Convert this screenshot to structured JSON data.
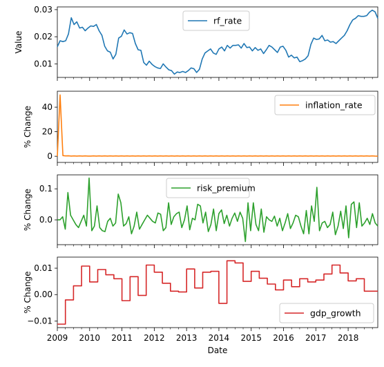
{
  "chart_data": [
    {
      "type": "line",
      "ylabel": "Value",
      "ylim": [
        0.005,
        0.031
      ],
      "yticks": [
        0.01,
        0.02,
        0.03
      ],
      "ytick_labels": [
        "0.01",
        "0.02",
        "0.03"
      ],
      "legend_position": "top-center",
      "series": [
        {
          "name": "rf_rate",
          "color": "#1f77b4",
          "values": [
            0.0163,
            0.0185,
            0.0182,
            0.0185,
            0.021,
            0.027,
            0.0245,
            0.0255,
            0.0232,
            0.0235,
            0.0222,
            0.0232,
            0.024,
            0.0238,
            0.0245,
            0.0222,
            0.0205,
            0.0165,
            0.0148,
            0.0143,
            0.0118,
            0.0135,
            0.0195,
            0.0202,
            0.0225,
            0.021,
            0.0215,
            0.0212,
            0.0175,
            0.0152,
            0.015,
            0.0105,
            0.0095,
            0.011,
            0.0098,
            0.009,
            0.0085,
            0.0083,
            0.01,
            0.0088,
            0.0078,
            0.0075,
            0.0062,
            0.007,
            0.0068,
            0.0072,
            0.0068,
            0.0075,
            0.0085,
            0.0082,
            0.0068,
            0.008,
            0.0118,
            0.014,
            0.0148,
            0.0155,
            0.014,
            0.0135,
            0.0155,
            0.0162,
            0.0148,
            0.0168,
            0.0158,
            0.0168,
            0.0168,
            0.017,
            0.0158,
            0.0175,
            0.016,
            0.0162,
            0.0148,
            0.016,
            0.015,
            0.0155,
            0.0138,
            0.0152,
            0.0168,
            0.0162,
            0.0152,
            0.0142,
            0.0162,
            0.0165,
            0.015,
            0.0125,
            0.0132,
            0.0122,
            0.0125,
            0.0108,
            0.0112,
            0.0118,
            0.013,
            0.0172,
            0.0195,
            0.019,
            0.0192,
            0.0205,
            0.0185,
            0.0188,
            0.018,
            0.0182,
            0.0175,
            0.0185,
            0.0195,
            0.0205,
            0.0222,
            0.0245,
            0.0262,
            0.0268,
            0.0278,
            0.0275,
            0.0275,
            0.0278,
            0.029,
            0.0298,
            0.0292,
            0.0268
          ]
        }
      ]
    },
    {
      "type": "line",
      "ylabel": "% Change",
      "ylim": [
        -5,
        53
      ],
      "yticks": [
        0,
        20,
        40
      ],
      "ytick_labels": [
        "0",
        "20",
        "40"
      ],
      "legend_position": "top-right",
      "series": [
        {
          "name": "inflation_rate",
          "color": "#ff7f0e",
          "values": [
            0,
            50,
            0.5,
            0.3,
            0.4,
            0.2,
            0.3,
            0.2,
            0.3,
            0.2,
            0.3,
            0.2,
            0.2,
            0.3,
            0.2,
            0.3,
            0.2,
            0.3,
            0.2,
            0.3,
            0.2,
            0.3,
            0.2,
            0.3,
            0.2,
            0.3,
            0.2,
            0.3,
            0.2,
            0.3,
            0.2,
            0.3,
            0.2,
            0.3,
            0.2,
            0.3,
            0.2,
            0.3,
            0.2,
            0.3,
            0.2,
            0.3,
            0.2,
            0.3,
            0.2,
            0.3,
            0.2,
            0.3,
            0.2,
            0.3,
            0.2,
            0.3,
            0.2,
            0.3,
            0.2,
            0.3,
            0.2,
            0.3,
            0.2,
            0.3,
            0.2,
            0.3,
            0.2,
            0.3,
            0.2,
            0.3,
            0.2,
            0.3,
            0.2,
            0.3,
            0.2,
            0.3,
            0.2,
            0.3,
            0.2,
            0.3,
            0.2,
            0.3,
            0.2,
            0.3,
            0.2,
            0.3,
            0.2,
            0.3,
            0.2,
            0.3,
            0.2,
            0.3,
            0.2,
            0.3,
            0.2,
            0.3,
            0.2,
            0.3,
            0.2,
            0.3,
            0.2,
            0.3,
            0.2,
            0.3,
            0.2,
            0.3,
            0.2,
            0.3,
            0.2,
            0.3,
            0.2,
            0.3,
            0.2,
            0.3,
            0.2,
            0.3,
            0.2,
            0.3,
            0.2,
            0.1
          ]
        }
      ]
    },
    {
      "type": "line",
      "ylabel": "% Change",
      "ylim": [
        -0.08,
        0.145
      ],
      "yticks": [
        0.0,
        0.1
      ],
      "ytick_labels": [
        "0.0",
        "0.1"
      ],
      "legend_position": "top-center",
      "series": [
        {
          "name": "risk_premium",
          "color": "#2ca02c",
          "values": [
            0.0,
            0.0,
            0.01,
            -0.03,
            0.088,
            0.015,
            0.0,
            -0.015,
            -0.025,
            -0.005,
            0.015,
            -0.02,
            0.135,
            -0.035,
            -0.02,
            0.045,
            -0.025,
            -0.035,
            -0.038,
            -0.005,
            0.005,
            -0.02,
            -0.01,
            0.083,
            0.055,
            -0.02,
            -0.012,
            0.01,
            -0.045,
            -0.02,
            0.025,
            -0.03,
            -0.015,
            0.0,
            0.015,
            0.005,
            -0.005,
            -0.01,
            0.022,
            0.018,
            -0.035,
            -0.025,
            0.055,
            -0.015,
            0.01,
            0.02,
            0.025,
            -0.025,
            0.0,
            0.045,
            -0.032,
            0.005,
            0.0,
            0.05,
            0.045,
            -0.01,
            0.025,
            -0.038,
            -0.015,
            0.035,
            -0.035,
            0.02,
            0.032,
            -0.012,
            0.015,
            -0.02,
            0.005,
            0.022,
            -0.005,
            0.025,
            0.005,
            -0.07,
            0.055,
            -0.035,
            0.055,
            -0.015,
            -0.035,
            0.035,
            -0.04,
            0.01,
            0.0,
            -0.005,
            0.012,
            -0.02,
            0.005,
            -0.035,
            -0.01,
            0.02,
            -0.028,
            -0.01,
            0.015,
            0.01,
            -0.02,
            -0.045,
            0.03,
            -0.045,
            0.045,
            -0.005,
            0.105,
            -0.035,
            -0.01,
            -0.005,
            -0.025,
            -0.015,
            0.025,
            -0.048,
            -0.02,
            0.028,
            -0.028,
            0.045,
            -0.058,
            0.05,
            0.058,
            -0.025,
            0.055,
            -0.02,
            -0.01,
            0.005,
            -0.015,
            0.02,
            -0.01,
            -0.02
          ]
        }
      ]
    },
    {
      "type": "line",
      "ylabel": "% Change",
      "xlabel": "Date",
      "ylim": [
        -0.0125,
        0.0142
      ],
      "yticks": [
        -0.01,
        0.0,
        0.01
      ],
      "ytick_labels": [
        "−0.01",
        "0.00",
        "0.01"
      ],
      "xlim": [
        2009.0,
        2018.917
      ],
      "xticks": [
        2009,
        2010,
        2011,
        2012,
        2013,
        2014,
        2015,
        2016,
        2017,
        2018
      ],
      "xtick_labels": [
        "2009",
        "2010",
        "2011",
        "2012",
        "2013",
        "2014",
        "2015",
        "2016",
        "2017",
        "2018"
      ],
      "legend_position": "bottom-right",
      "series": [
        {
          "name": "gdp_growth",
          "color": "#d62728",
          "step": "quarterly",
          "values": [
            -0.0112,
            -0.002,
            0.0033,
            0.0108,
            0.0048,
            0.0095,
            0.0075,
            0.006,
            -0.0023,
            0.0068,
            -0.0003,
            0.0112,
            0.0085,
            0.0043,
            0.0013,
            0.001,
            0.0097,
            0.0025,
            0.0085,
            0.0088,
            -0.0033,
            0.0128,
            0.012,
            0.005,
            0.0088,
            0.0062,
            0.004,
            0.0018,
            0.0055,
            0.003,
            0.006,
            0.0048,
            0.0055,
            0.0078,
            0.0112,
            0.0082,
            0.0052,
            0.006,
            0.0013,
            0.0013
          ]
        }
      ]
    }
  ]
}
